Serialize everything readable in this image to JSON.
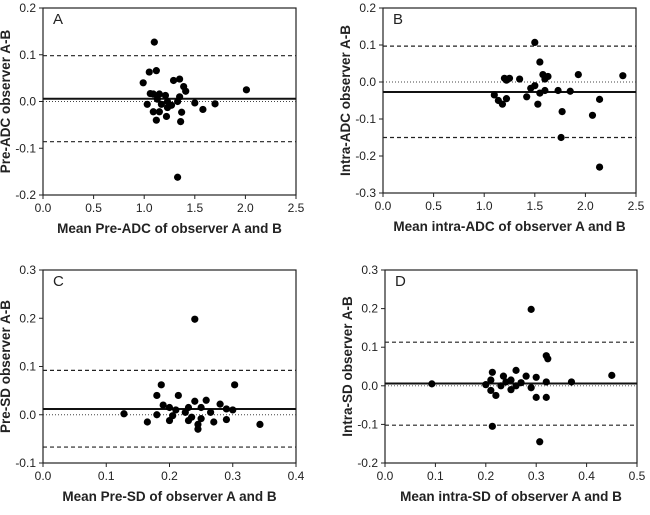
{
  "chart_data": [
    {
      "type": "scatter",
      "panel_label": "A",
      "xlabel": "Mean Pre-ADC of observer A and B",
      "ylabel": "Pre-ADC observer A-B",
      "xlim": [
        0,
        2.5
      ],
      "ylim": [
        -0.2,
        0.2
      ],
      "xticks": [
        0,
        0.5,
        1,
        1.5,
        2,
        2.5
      ],
      "yticks": [
        -0.2,
        -0.1,
        0,
        0.1,
        0.2
      ],
      "xtick_labels": [
        "0.0",
        "0.5",
        "1.0",
        "1.5",
        "2.0",
        "2.5"
      ],
      "ytick_labels": [
        "-0.2",
        "-0.1",
        "0.0",
        "0.1",
        "0.2"
      ],
      "mean_diff": 0.006,
      "upper_limit": 0.098,
      "lower_limit": -0.086,
      "zero_line": 0,
      "points": [
        [
          1.1,
          0.127
        ],
        [
          1.05,
          0.063
        ],
        [
          1.12,
          0.066
        ],
        [
          0.99,
          0.04
        ],
        [
          1.29,
          0.045
        ],
        [
          1.35,
          0.048
        ],
        [
          1.39,
          0.032
        ],
        [
          1.41,
          0.022
        ],
        [
          2.01,
          0.025
        ],
        [
          1.06,
          0.017
        ],
        [
          1.09,
          0.016
        ],
        [
          1.15,
          0.016
        ],
        [
          1.21,
          0.013
        ],
        [
          1.35,
          0.01
        ],
        [
          1.13,
          0.005
        ],
        [
          1.23,
          0.0
        ],
        [
          1.33,
          0.0
        ],
        [
          1.5,
          -0.003
        ],
        [
          1.7,
          -0.005
        ],
        [
          1.03,
          -0.006
        ],
        [
          1.17,
          -0.006
        ],
        [
          1.27,
          -0.008
        ],
        [
          1.23,
          -0.013
        ],
        [
          1.58,
          -0.017
        ],
        [
          1.09,
          -0.022
        ],
        [
          1.15,
          -0.022
        ],
        [
          1.37,
          -0.023
        ],
        [
          1.22,
          -0.032
        ],
        [
          1.12,
          -0.04
        ],
        [
          1.36,
          -0.043
        ],
        [
          1.33,
          -0.162
        ]
      ]
    },
    {
      "type": "scatter",
      "panel_label": "B",
      "xlabel": "Mean intra-ADC of observer A and B",
      "ylabel": "Intra-ADC observer A-B",
      "xlim": [
        0,
        2.5
      ],
      "ylim": [
        -0.3,
        0.2
      ],
      "xticks": [
        0,
        0.5,
        1,
        1.5,
        2,
        2.5
      ],
      "yticks": [
        -0.3,
        -0.2,
        -0.1,
        0,
        0.1,
        0.2
      ],
      "xtick_labels": [
        "0.0",
        "0.5",
        "1.0",
        "1.5",
        "2.0",
        "2.5"
      ],
      "ytick_labels": [
        "-0.3",
        "-0.2",
        "-0.1",
        "0.0",
        "0.1",
        "0.2"
      ],
      "mean_diff": -0.027,
      "upper_limit": 0.097,
      "lower_limit": -0.15,
      "zero_line": 0,
      "points": [
        [
          1.5,
          0.107
        ],
        [
          1.55,
          0.054
        ],
        [
          1.58,
          0.02
        ],
        [
          1.63,
          0.015
        ],
        [
          1.93,
          0.02
        ],
        [
          2.37,
          0.017
        ],
        [
          1.2,
          0.01
        ],
        [
          1.25,
          0.01
        ],
        [
          1.35,
          0.008
        ],
        [
          1.6,
          0.008
        ],
        [
          1.22,
          0.005
        ],
        [
          1.5,
          -0.01
        ],
        [
          1.46,
          -0.017
        ],
        [
          1.6,
          -0.023
        ],
        [
          1.73,
          -0.023
        ],
        [
          1.85,
          -0.025
        ],
        [
          1.1,
          -0.035
        ],
        [
          1.55,
          -0.03
        ],
        [
          1.22,
          -0.045
        ],
        [
          1.42,
          -0.04
        ],
        [
          1.14,
          -0.05
        ],
        [
          1.18,
          -0.06
        ],
        [
          1.53,
          -0.06
        ],
        [
          1.77,
          -0.08
        ],
        [
          2.14,
          -0.047
        ],
        [
          2.07,
          -0.09
        ],
        [
          1.76,
          -0.15
        ],
        [
          2.14,
          -0.23
        ]
      ]
    },
    {
      "type": "scatter",
      "panel_label": "C",
      "xlabel": "Mean Pre-SD of observer A and B",
      "ylabel": "Pre-SD observer A-B",
      "xlim": [
        0,
        0.4
      ],
      "ylim": [
        -0.1,
        0.3
      ],
      "xticks": [
        0,
        0.1,
        0.2,
        0.3,
        0.4
      ],
      "yticks": [
        -0.1,
        0,
        0.1,
        0.2,
        0.3
      ],
      "xtick_labels": [
        "0.0",
        "0.1",
        "0.2",
        "0.3",
        "0.4"
      ],
      "ytick_labels": [
        "-0.1",
        "0.0",
        "0.1",
        "0.2",
        "0.3"
      ],
      "mean_diff": 0.012,
      "upper_limit": 0.092,
      "lower_limit": -0.067,
      "zero_line": 0,
      "points": [
        [
          0.24,
          0.198
        ],
        [
          0.187,
          0.062
        ],
        [
          0.303,
          0.062
        ],
        [
          0.18,
          0.04
        ],
        [
          0.214,
          0.04
        ],
        [
          0.258,
          0.03
        ],
        [
          0.24,
          0.028
        ],
        [
          0.28,
          0.022
        ],
        [
          0.19,
          0.02
        ],
        [
          0.2,
          0.015
        ],
        [
          0.23,
          0.015
        ],
        [
          0.25,
          0.015
        ],
        [
          0.29,
          0.012
        ],
        [
          0.3,
          0.01
        ],
        [
          0.21,
          0.01
        ],
        [
          0.225,
          0.005
        ],
        [
          0.265,
          0.005
        ],
        [
          0.128,
          0.002
        ],
        [
          0.18,
          0.0
        ],
        [
          0.205,
          -0.002
        ],
        [
          0.235,
          -0.005
        ],
        [
          0.25,
          -0.008
        ],
        [
          0.29,
          -0.01
        ],
        [
          0.2,
          -0.012
        ],
        [
          0.23,
          -0.012
        ],
        [
          0.165,
          -0.015
        ],
        [
          0.245,
          -0.02
        ],
        [
          0.27,
          -0.015
        ],
        [
          0.343,
          -0.02
        ],
        [
          0.245,
          -0.03
        ]
      ]
    },
    {
      "type": "scatter",
      "panel_label": "D",
      "xlabel": "Mean intra-SD of observer A and B",
      "ylabel": "Intra-SD observer A-B",
      "xlim": [
        0,
        0.5
      ],
      "ylim": [
        -0.2,
        0.3
      ],
      "xticks": [
        0,
        0.1,
        0.2,
        0.3,
        0.4,
        0.5
      ],
      "yticks": [
        -0.2,
        -0.1,
        0,
        0.1,
        0.2,
        0.3
      ],
      "xtick_labels": [
        "0.0",
        "0.1",
        "0.2",
        "0.3",
        "0.4",
        "0.5"
      ],
      "ytick_labels": [
        "-0.2",
        "-0.1",
        "0.0",
        "0.1",
        "0.2",
        "0.3"
      ],
      "mean_diff": 0.006,
      "upper_limit": 0.113,
      "lower_limit": -0.102,
      "zero_line": 0,
      "points": [
        [
          0.29,
          0.198
        ],
        [
          0.32,
          0.078
        ],
        [
          0.323,
          0.07
        ],
        [
          0.45,
          0.027
        ],
        [
          0.213,
          0.035
        ],
        [
          0.26,
          0.04
        ],
        [
          0.235,
          0.025
        ],
        [
          0.28,
          0.025
        ],
        [
          0.3,
          0.022
        ],
        [
          0.25,
          0.015
        ],
        [
          0.21,
          0.015
        ],
        [
          0.24,
          0.01
        ],
        [
          0.27,
          0.008
        ],
        [
          0.32,
          0.01
        ],
        [
          0.37,
          0.01
        ],
        [
          0.093,
          0.005
        ],
        [
          0.2,
          0.003
        ],
        [
          0.23,
          0.0
        ],
        [
          0.26,
          0.0
        ],
        [
          0.29,
          -0.005
        ],
        [
          0.21,
          -0.012
        ],
        [
          0.25,
          -0.01
        ],
        [
          0.22,
          -0.025
        ],
        [
          0.3,
          -0.03
        ],
        [
          0.32,
          -0.03
        ],
        [
          0.213,
          -0.105
        ],
        [
          0.307,
          -0.145
        ]
      ]
    }
  ]
}
